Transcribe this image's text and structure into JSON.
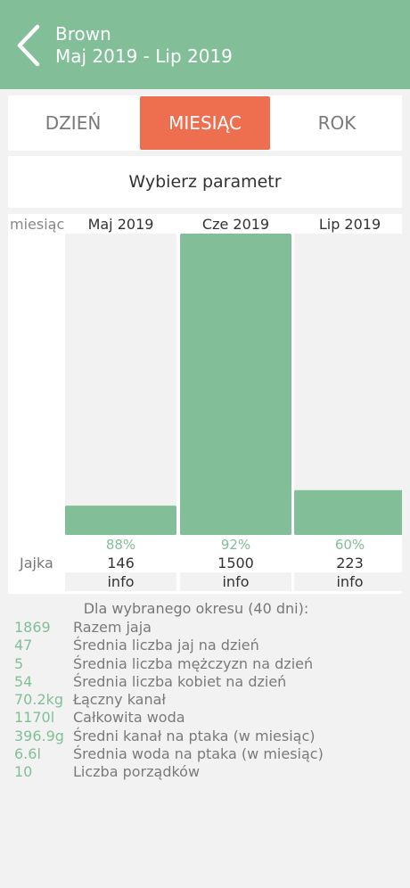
{
  "header": {
    "title": "Brown",
    "subtitle": "Maj 2019 - Lip 2019"
  },
  "tabs": [
    {
      "label": "DZIEŃ",
      "active": false
    },
    {
      "label": "MIESIĄC",
      "active": true
    },
    {
      "label": "ROK",
      "active": false
    }
  ],
  "param_button": "Wybierz parametr",
  "chart_data": {
    "type": "bar",
    "row_header": "miesiąc",
    "categories": [
      "Maj 2019",
      "Cze 2019",
      "Lip 2019"
    ],
    "series": [
      {
        "name": "Jajka",
        "values": [
          146,
          1500,
          223
        ]
      }
    ],
    "percentages": [
      "88%",
      "92%",
      "60%"
    ],
    "info_label": "info",
    "bar_color": "#82bf98"
  },
  "summary": {
    "title": "Dla wybranego okresu (40 dni):",
    "rows": [
      {
        "value": "1869",
        "label": "Razem jaja"
      },
      {
        "value": "47",
        "label": "Średnia liczba jaj na dzień"
      },
      {
        "value": "5",
        "label": "Średnia liczba mężczyzn na dzień"
      },
      {
        "value": "54",
        "label": "Średnia liczba kobiet na dzień"
      },
      {
        "value": "70.2kg",
        "label": "Łączny kanał"
      },
      {
        "value": "1170l",
        "label": "Całkowita woda"
      },
      {
        "value": "396.9g",
        "label": "Średni kanał na ptaka (w miesiąc)"
      },
      {
        "value": "6.6l",
        "label": "Średnia woda na ptaka (w miesiąc)"
      },
      {
        "value": "10",
        "label": "Liczba porządków"
      }
    ]
  },
  "colors": {
    "header": "#82bf98",
    "accent_tab": "#ee6f50",
    "value_green": "#82bf98"
  }
}
